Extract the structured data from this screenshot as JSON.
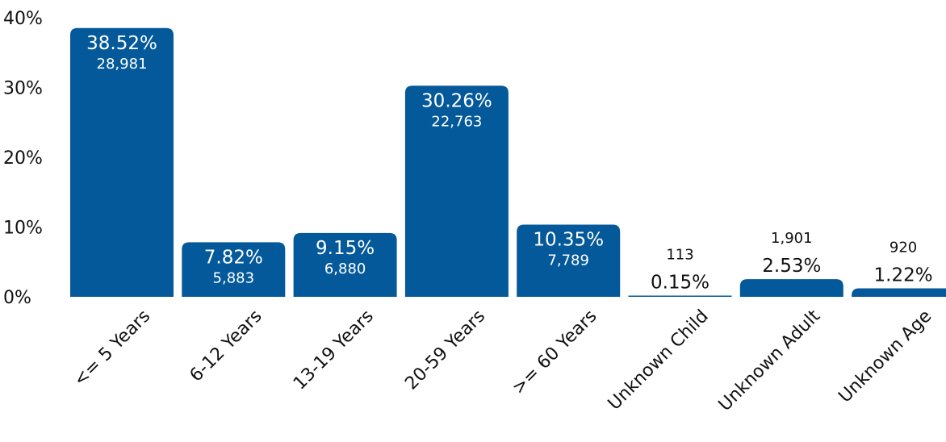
{
  "chart_data": {
    "type": "bar",
    "title": "",
    "xlabel": "",
    "ylabel": "",
    "ylim": [
      0,
      40
    ],
    "yticks": [
      {
        "value": 0,
        "label": "0%"
      },
      {
        "value": 10,
        "label": "10%"
      },
      {
        "value": 20,
        "label": "20%"
      },
      {
        "value": 30,
        "label": "30%"
      },
      {
        "value": 40,
        "label": "40%"
      }
    ],
    "grid": false,
    "bar_color": "#04599a",
    "categories": [
      "<= 5 Years",
      "6-12 Years",
      "13-19 Years",
      "20-59 Years",
      ">= 60 Years",
      "Unknown Child",
      "Unknown Adult",
      "Unknown Age"
    ],
    "values": [
      38.52,
      7.82,
      9.15,
      30.26,
      10.35,
      0.15,
      2.53,
      1.22
    ],
    "percent_labels": [
      "38.52%",
      "7.82%",
      "9.15%",
      "30.26%",
      "10.35%",
      "0.15%",
      "2.53%",
      "1.22%"
    ],
    "counts": [
      "28,981",
      "5,883",
      "6,880",
      "22,763",
      "7,789",
      "113",
      "1,901",
      "920"
    ]
  }
}
